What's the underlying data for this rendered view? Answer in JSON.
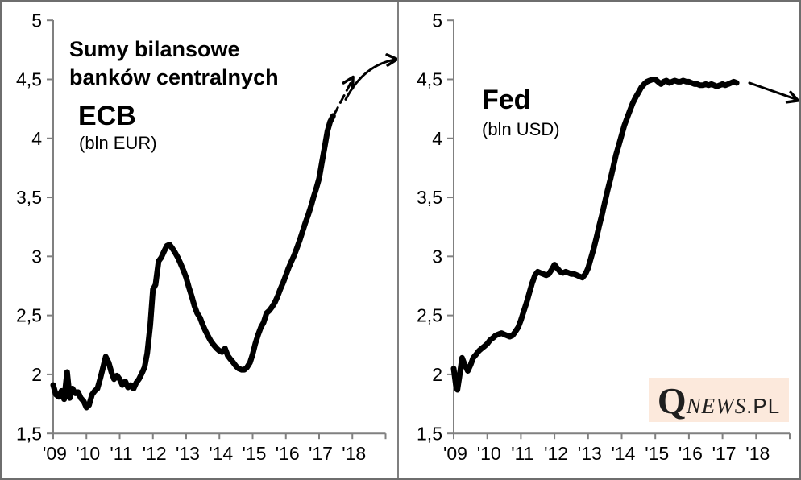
{
  "left_panel": {
    "title": "Sumy bilansowe\nbanków centralnych",
    "series_name": "ECB",
    "series_unit": "(bln EUR)"
  },
  "right_panel": {
    "series_name": "Fed",
    "series_unit": "(bln USD)"
  },
  "logo": {
    "q": "Q",
    "news": "NEWS",
    "pl": ".PL",
    "bg_color": "#fce9dc",
    "text_color": "#1f1f1f"
  },
  "colors": {
    "line": "#000000",
    "axis": "#808080",
    "text": "#000000",
    "background": "#ffffff",
    "frame": "#6e6e6e"
  },
  "chart_data": [
    {
      "type": "line",
      "title": "Sumy bilansowe banków centralnych — ECB",
      "ylabel": "bln EUR",
      "xlabel": "",
      "legend": "none",
      "grid": false,
      "xlim": [
        2009,
        2019
      ],
      "ylim": [
        1.5,
        5
      ],
      "y_ticks": [
        1.5,
        2,
        2.5,
        3,
        3.5,
        4,
        4.5,
        5
      ],
      "y_tick_labels": [
        "1,5",
        "2",
        "2,5",
        "3",
        "3,5",
        "4",
        "4,5",
        "5"
      ],
      "x_ticks": [
        2009,
        2010,
        2011,
        2012,
        2013,
        2014,
        2015,
        2016,
        2017,
        2018,
        2019
      ],
      "x_tick_labels": [
        "'09",
        "'10",
        "'11",
        "'12",
        "'13",
        "'14",
        "'15",
        "'16",
        "'17",
        "'18"
      ],
      "points": [
        [
          2009.0,
          1.91
        ],
        [
          2009.08,
          1.83
        ],
        [
          2009.17,
          1.81
        ],
        [
          2009.25,
          1.86
        ],
        [
          2009.33,
          1.79
        ],
        [
          2009.42,
          2.02
        ],
        [
          2009.5,
          1.8
        ],
        [
          2009.58,
          1.88
        ],
        [
          2009.67,
          1.84
        ],
        [
          2009.75,
          1.85
        ],
        [
          2009.83,
          1.8
        ],
        [
          2009.92,
          1.77
        ],
        [
          2010.0,
          1.72
        ],
        [
          2010.08,
          1.74
        ],
        [
          2010.17,
          1.83
        ],
        [
          2010.25,
          1.86
        ],
        [
          2010.33,
          1.88
        ],
        [
          2010.42,
          1.97
        ],
        [
          2010.5,
          2.06
        ],
        [
          2010.58,
          2.15
        ],
        [
          2010.67,
          2.1
        ],
        [
          2010.75,
          2.02
        ],
        [
          2010.83,
          1.96
        ],
        [
          2010.92,
          1.99
        ],
        [
          2011.0,
          1.96
        ],
        [
          2011.08,
          1.91
        ],
        [
          2011.17,
          1.94
        ],
        [
          2011.25,
          1.89
        ],
        [
          2011.33,
          1.91
        ],
        [
          2011.42,
          1.88
        ],
        [
          2011.5,
          1.93
        ],
        [
          2011.58,
          1.96
        ],
        [
          2011.67,
          2.01
        ],
        [
          2011.75,
          2.06
        ],
        [
          2011.83,
          2.18
        ],
        [
          2011.92,
          2.42
        ],
        [
          2012.0,
          2.72
        ],
        [
          2012.08,
          2.76
        ],
        [
          2012.17,
          2.96
        ],
        [
          2012.25,
          2.99
        ],
        [
          2012.33,
          3.04
        ],
        [
          2012.42,
          3.09
        ],
        [
          2012.5,
          3.1
        ],
        [
          2012.58,
          3.07
        ],
        [
          2012.67,
          3.03
        ],
        [
          2012.75,
          2.99
        ],
        [
          2012.83,
          2.94
        ],
        [
          2012.92,
          2.88
        ],
        [
          2013.0,
          2.82
        ],
        [
          2013.08,
          2.74
        ],
        [
          2013.17,
          2.66
        ],
        [
          2013.25,
          2.58
        ],
        [
          2013.33,
          2.52
        ],
        [
          2013.42,
          2.48
        ],
        [
          2013.5,
          2.42
        ],
        [
          2013.58,
          2.37
        ],
        [
          2013.67,
          2.32
        ],
        [
          2013.75,
          2.28
        ],
        [
          2013.83,
          2.25
        ],
        [
          2013.92,
          2.22
        ],
        [
          2014.0,
          2.2
        ],
        [
          2014.08,
          2.19
        ],
        [
          2014.17,
          2.22
        ],
        [
          2014.25,
          2.16
        ],
        [
          2014.33,
          2.13
        ],
        [
          2014.42,
          2.1
        ],
        [
          2014.5,
          2.07
        ],
        [
          2014.58,
          2.05
        ],
        [
          2014.67,
          2.04
        ],
        [
          2014.75,
          2.04
        ],
        [
          2014.83,
          2.06
        ],
        [
          2014.92,
          2.1
        ],
        [
          2015.0,
          2.17
        ],
        [
          2015.08,
          2.26
        ],
        [
          2015.17,
          2.34
        ],
        [
          2015.25,
          2.4
        ],
        [
          2015.33,
          2.44
        ],
        [
          2015.42,
          2.52
        ],
        [
          2015.5,
          2.54
        ],
        [
          2015.58,
          2.57
        ],
        [
          2015.67,
          2.61
        ],
        [
          2015.75,
          2.66
        ],
        [
          2015.83,
          2.72
        ],
        [
          2015.92,
          2.78
        ],
        [
          2016.0,
          2.84
        ],
        [
          2016.08,
          2.9
        ],
        [
          2016.17,
          2.96
        ],
        [
          2016.25,
          3.01
        ],
        [
          2016.33,
          3.07
        ],
        [
          2016.42,
          3.14
        ],
        [
          2016.5,
          3.21
        ],
        [
          2016.58,
          3.28
        ],
        [
          2016.67,
          3.35
        ],
        [
          2016.75,
          3.42
        ],
        [
          2016.83,
          3.5
        ],
        [
          2016.92,
          3.58
        ],
        [
          2017.0,
          3.66
        ],
        [
          2017.08,
          3.79
        ],
        [
          2017.17,
          3.93
        ],
        [
          2017.25,
          4.06
        ],
        [
          2017.33,
          4.14
        ],
        [
          2017.42,
          4.19
        ]
      ],
      "annotations": [
        {
          "kind": "dashed-line",
          "from": [
            2017.45,
            4.2
          ],
          "to": [
            2017.95,
            4.47
          ]
        },
        {
          "kind": "arrowhead",
          "at": [
            2018.02,
            4.52
          ],
          "angle_deg": -60
        },
        {
          "kind": "curve",
          "from": [
            2017.8,
            4.33
          ],
          "ctrl": [
            2018.35,
            4.63
          ],
          "to": [
            2019.35,
            4.67
          ]
        },
        {
          "kind": "arrowhead",
          "at": [
            2019.35,
            4.67
          ],
          "angle_deg": -4
        }
      ]
    },
    {
      "type": "line",
      "title": "Sumy bilansowe banków centralnych — Fed",
      "ylabel": "bln USD",
      "xlabel": "",
      "legend": "none",
      "grid": false,
      "xlim": [
        2009,
        2019
      ],
      "ylim": [
        1.5,
        5
      ],
      "y_ticks": [
        1.5,
        2,
        2.5,
        3,
        3.5,
        4,
        4.5,
        5
      ],
      "y_tick_labels": [
        "1,5",
        "2",
        "2,5",
        "3",
        "3,5",
        "4",
        "4,5",
        "5"
      ],
      "x_ticks": [
        2009,
        2010,
        2011,
        2012,
        2013,
        2014,
        2015,
        2016,
        2017,
        2018,
        2019
      ],
      "x_tick_labels": [
        "'09",
        "'10",
        "'11",
        "'12",
        "'13",
        "'14",
        "'15",
        "'16",
        "'17",
        "'18"
      ],
      "points": [
        [
          2009.0,
          2.05
        ],
        [
          2009.06,
          1.92
        ],
        [
          2009.11,
          1.87
        ],
        [
          2009.17,
          1.98
        ],
        [
          2009.25,
          2.14
        ],
        [
          2009.33,
          2.08
        ],
        [
          2009.42,
          2.03
        ],
        [
          2009.5,
          2.08
        ],
        [
          2009.58,
          2.14
        ],
        [
          2009.67,
          2.17
        ],
        [
          2009.75,
          2.2
        ],
        [
          2009.83,
          2.22
        ],
        [
          2009.92,
          2.24
        ],
        [
          2010.0,
          2.26
        ],
        [
          2010.08,
          2.29
        ],
        [
          2010.17,
          2.31
        ],
        [
          2010.25,
          2.33
        ],
        [
          2010.33,
          2.34
        ],
        [
          2010.42,
          2.35
        ],
        [
          2010.5,
          2.34
        ],
        [
          2010.58,
          2.33
        ],
        [
          2010.67,
          2.32
        ],
        [
          2010.75,
          2.33
        ],
        [
          2010.83,
          2.36
        ],
        [
          2010.92,
          2.4
        ],
        [
          2011.0,
          2.46
        ],
        [
          2011.08,
          2.53
        ],
        [
          2011.17,
          2.61
        ],
        [
          2011.25,
          2.69
        ],
        [
          2011.33,
          2.77
        ],
        [
          2011.42,
          2.84
        ],
        [
          2011.5,
          2.87
        ],
        [
          2011.58,
          2.86
        ],
        [
          2011.67,
          2.85
        ],
        [
          2011.75,
          2.84
        ],
        [
          2011.83,
          2.85
        ],
        [
          2011.92,
          2.89
        ],
        [
          2012.0,
          2.93
        ],
        [
          2012.08,
          2.9
        ],
        [
          2012.17,
          2.87
        ],
        [
          2012.25,
          2.86
        ],
        [
          2012.33,
          2.87
        ],
        [
          2012.42,
          2.86
        ],
        [
          2012.5,
          2.85
        ],
        [
          2012.58,
          2.85
        ],
        [
          2012.67,
          2.84
        ],
        [
          2012.75,
          2.83
        ],
        [
          2012.83,
          2.82
        ],
        [
          2012.92,
          2.85
        ],
        [
          2013.0,
          2.9
        ],
        [
          2013.08,
          2.98
        ],
        [
          2013.17,
          3.07
        ],
        [
          2013.25,
          3.16
        ],
        [
          2013.33,
          3.26
        ],
        [
          2013.42,
          3.36
        ],
        [
          2013.5,
          3.46
        ],
        [
          2013.58,
          3.56
        ],
        [
          2013.67,
          3.66
        ],
        [
          2013.75,
          3.76
        ],
        [
          2013.83,
          3.86
        ],
        [
          2013.92,
          3.95
        ],
        [
          2014.0,
          4.03
        ],
        [
          2014.08,
          4.11
        ],
        [
          2014.17,
          4.18
        ],
        [
          2014.25,
          4.24
        ],
        [
          2014.33,
          4.3
        ],
        [
          2014.42,
          4.35
        ],
        [
          2014.5,
          4.39
        ],
        [
          2014.58,
          4.43
        ],
        [
          2014.67,
          4.46
        ],
        [
          2014.75,
          4.48
        ],
        [
          2014.83,
          4.49
        ],
        [
          2014.92,
          4.5
        ],
        [
          2015.0,
          4.5
        ],
        [
          2015.08,
          4.48
        ],
        [
          2015.17,
          4.46
        ],
        [
          2015.25,
          4.48
        ],
        [
          2015.33,
          4.49
        ],
        [
          2015.42,
          4.47
        ],
        [
          2015.5,
          4.48
        ],
        [
          2015.58,
          4.49
        ],
        [
          2015.67,
          4.48
        ],
        [
          2015.75,
          4.48
        ],
        [
          2015.83,
          4.49
        ],
        [
          2015.92,
          4.48
        ],
        [
          2016.0,
          4.48
        ],
        [
          2016.08,
          4.47
        ],
        [
          2016.17,
          4.46
        ],
        [
          2016.25,
          4.46
        ],
        [
          2016.33,
          4.45
        ],
        [
          2016.42,
          4.45
        ],
        [
          2016.5,
          4.46
        ],
        [
          2016.58,
          4.45
        ],
        [
          2016.67,
          4.46
        ],
        [
          2016.75,
          4.45
        ],
        [
          2016.83,
          4.44
        ],
        [
          2016.92,
          4.45
        ],
        [
          2017.0,
          4.46
        ],
        [
          2017.08,
          4.45
        ],
        [
          2017.17,
          4.46
        ],
        [
          2017.25,
          4.47
        ],
        [
          2017.33,
          4.48
        ],
        [
          2017.42,
          4.47
        ]
      ],
      "annotations": [
        {
          "kind": "line",
          "from": [
            2017.8,
            4.47
          ],
          "to": [
            2019.2,
            4.33
          ]
        },
        {
          "kind": "arrowhead",
          "at": [
            2019.25,
            4.32
          ],
          "angle_deg": 20
        }
      ]
    }
  ]
}
